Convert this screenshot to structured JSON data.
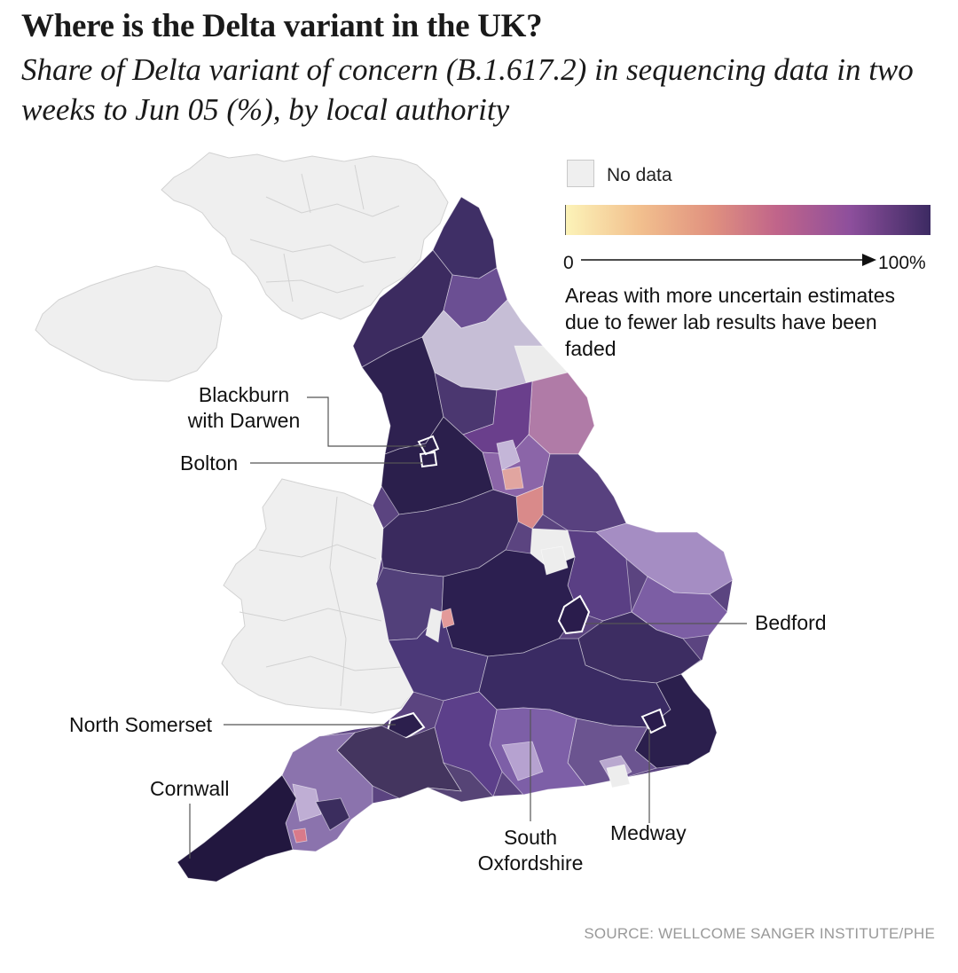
{
  "title": "Where is the Delta variant in the UK?",
  "subtitle": "Share of Delta variant of concern (B.1.617.2) in sequencing data in two weeks to Jun 05 (%), by local authority",
  "legend": {
    "no_data_label": "No data",
    "scale_min": "0",
    "scale_max": "100%",
    "note": "Areas with more uncertain estimates due to fewer lab results have been faded",
    "colors": [
      "#fcf3b8",
      "#f2c08e",
      "#e0917f",
      "#c0648a",
      "#8d4f9c",
      "#3c2a62"
    ]
  },
  "annotations": {
    "blackburn": "Blackburn with Darwen",
    "bolton": "Bolton",
    "bedford": "Bedford",
    "north_somerset": "North Somerset",
    "cornwall": "Cornwall",
    "south_oxfordshire": "South Oxfordshire",
    "medway": "Medway"
  },
  "source": "SOURCE: WELLCOME SANGER INSTITUTE/PHE",
  "map_colors": {
    "no_data": "#efefef",
    "deep": "#2a1e4d",
    "dark": "#4a3a6e",
    "mid": "#6b4d91",
    "light": "#a98fc0",
    "faded": "#c6bed6",
    "pink": "#e0917f"
  }
}
